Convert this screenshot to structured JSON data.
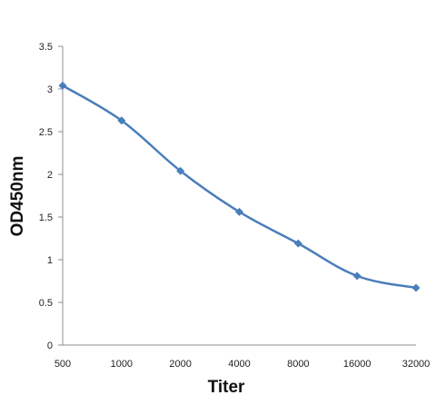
{
  "chart_data": {
    "type": "line",
    "xlabel": "Titer",
    "ylabel": "OD450nm",
    "categories": [
      "500",
      "1000",
      "2000",
      "4000",
      "8000",
      "16000",
      "32000"
    ],
    "series": [
      {
        "values": [
          3.04,
          2.63,
          2.04,
          1.56,
          1.19,
          0.81,
          0.67
        ]
      }
    ],
    "ylim": [
      0,
      3.5
    ],
    "yticks": [
      "0",
      "0.5",
      "1",
      "1.5",
      "2",
      "2.5",
      "3",
      "3.5"
    ],
    "grid": false,
    "legend": "none",
    "colors": {
      "line": "#4a7ebb",
      "marker": "#4a7ebb",
      "axis": "#8c8c8c"
    }
  }
}
